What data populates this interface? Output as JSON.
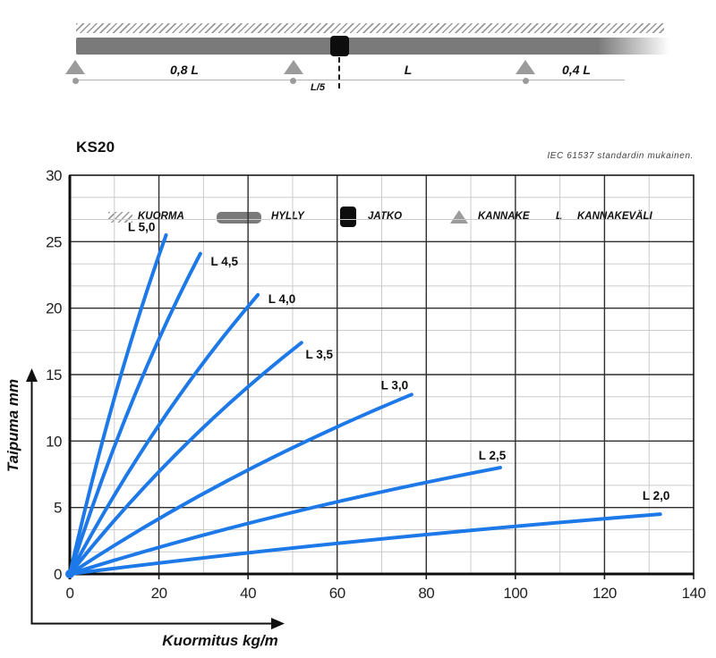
{
  "schematic": {
    "span_labels": {
      "left": "0,8 L",
      "mid": "L",
      "right": "0,4 L",
      "joint": "L/5"
    },
    "legend": {
      "kuorma": "KUORMA",
      "hylly": "HYLLY",
      "jatko": "JATKO",
      "kannake": "KANNAKE",
      "l_symbol": "L",
      "kannakevali": "KANNAKEVÄLI"
    },
    "colors": {
      "shelf": "#7a7a7a",
      "support": "#9b9b9b",
      "joint": "#0d0d0d",
      "hatch": "#9a9a9a"
    }
  },
  "chart": {
    "title": "KS20",
    "note": "IEC 61537 standardin mukainen."
  },
  "chart_data": {
    "type": "line",
    "title": "KS20",
    "xlabel": "Kuormitus kg/m",
    "ylabel": "Taipuma mm",
    "xlim": [
      0,
      140
    ],
    "ylim": [
      0,
      30
    ],
    "x_ticks": [
      0,
      20,
      40,
      60,
      80,
      100,
      120,
      140
    ],
    "y_ticks": [
      0,
      5,
      10,
      15,
      20,
      25,
      30
    ],
    "x_major": 20,
    "x_minor_per_major": 2,
    "y_major": 5,
    "y_minor_per_major": 3,
    "grid": "on",
    "line_color": "#1d78e8",
    "major_grid_color": "#2f2f2f",
    "minor_grid_color": "#cbcbcb",
    "series": [
      {
        "name": "L 5,0",
        "points": [
          [
            0,
            0
          ],
          [
            10.3,
            13.6
          ],
          [
            21.6,
            25.5
          ]
        ],
        "label_at": [
          16.1,
          26.1
        ]
      },
      {
        "name": "L 4,5",
        "points": [
          [
            0,
            0
          ],
          [
            13.9,
            12.9
          ],
          [
            29.3,
            24.1
          ]
        ],
        "label_at": [
          34.7,
          23.5
        ]
      },
      {
        "name": "L 4,0",
        "points": [
          [
            0,
            0
          ],
          [
            20.0,
            11.2
          ],
          [
            42.2,
            21.0
          ]
        ],
        "label_at": [
          47.6,
          20.7
        ]
      },
      {
        "name": "L 3,5",
        "points": [
          [
            0,
            0
          ],
          [
            24.7,
            9.3
          ],
          [
            52.0,
            17.4
          ]
        ],
        "label_at": [
          56.0,
          16.5
        ]
      },
      {
        "name": "L 3,0",
        "points": [
          [
            0,
            0
          ],
          [
            36.4,
            7.2
          ],
          [
            76.7,
            13.5
          ]
        ],
        "label_at": [
          72.9,
          14.2
        ]
      },
      {
        "name": "L 2,5",
        "points": [
          [
            0,
            0
          ],
          [
            45.9,
            4.3
          ],
          [
            96.6,
            8.0
          ]
        ],
        "label_at": [
          94.8,
          8.9
        ]
      },
      {
        "name": "L 2,0",
        "points": [
          [
            0,
            0
          ],
          [
            62.9,
            2.4
          ],
          [
            132.5,
            4.5
          ]
        ],
        "label_at": [
          131.6,
          5.9
        ]
      }
    ]
  }
}
